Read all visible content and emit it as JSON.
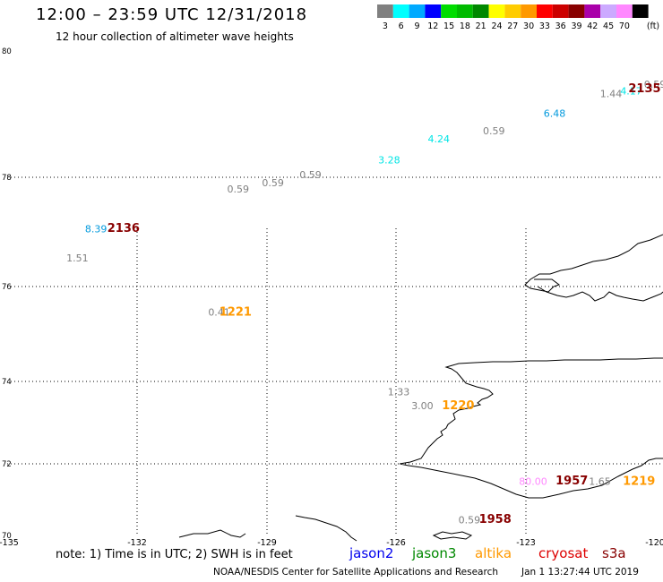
{
  "header": {
    "title": "12:00 – 23:59 UTC 12/31/2018",
    "subtitle": "12 hour collection of altimeter wave heights"
  },
  "legend": {
    "unit": "(ft)",
    "swatches": [
      {
        "color": "#808080",
        "label": "3"
      },
      {
        "color": "#00ffff",
        "label": "6"
      },
      {
        "color": "#00aaff",
        "label": "9"
      },
      {
        "color": "#0000ff",
        "label": "12"
      },
      {
        "color": "#00dd00",
        "label": "15"
      },
      {
        "color": "#00bb00",
        "label": "18"
      },
      {
        "color": "#008800",
        "label": "21"
      },
      {
        "color": "#ffff00",
        "label": "24"
      },
      {
        "color": "#ffcc00",
        "label": "27"
      },
      {
        "color": "#ff9900",
        "label": "30"
      },
      {
        "color": "#ff0000",
        "label": "33"
      },
      {
        "color": "#cc0000",
        "label": "36"
      },
      {
        "color": "#880000",
        "label": "39"
      },
      {
        "color": "#aa00aa",
        "label": "42"
      },
      {
        "color": "#ccaaff",
        "label": "45"
      },
      {
        "color": "#ff88ff",
        "label": "70"
      },
      {
        "color": "#000000",
        "label": ""
      }
    ]
  },
  "axes": {
    "lat_labels": [
      "80",
      "78",
      "76",
      "74",
      "72",
      "70"
    ],
    "lon_labels": [
      "-135",
      "-132",
      "-129",
      "-126",
      "-123",
      "-120"
    ]
  },
  "wave_heights": [
    {
      "text": "0.59",
      "color": "#808080",
      "lon": -120.0,
      "lat": 79.42
    },
    {
      "text": "1.44",
      "color": "#808080",
      "lon": -121.02,
      "lat": 79.27
    },
    {
      "text": "4.17",
      "color": "#00e5e5",
      "lon": -120.55,
      "lat": 79.31
    },
    {
      "text": "6.48",
      "color": "#0099dd",
      "lon": -122.33,
      "lat": 78.96
    },
    {
      "text": "0.59",
      "color": "#808080",
      "lon": -123.74,
      "lat": 78.68
    },
    {
      "text": "4.24",
      "color": "#00e5e5",
      "lon": -125.02,
      "lat": 78.55
    },
    {
      "text": "3.28",
      "color": "#00e5e5",
      "lon": -126.17,
      "lat": 78.22
    },
    {
      "text": "0.59",
      "color": "#808080",
      "lon": -128.0,
      "lat": 77.98
    },
    {
      "text": "0.59",
      "color": "#808080",
      "lon": -128.87,
      "lat": 77.84
    },
    {
      "text": "0.59",
      "color": "#808080",
      "lon": -129.68,
      "lat": 77.72
    },
    {
      "text": "8.39",
      "color": "#0099dd",
      "lon": -132.98,
      "lat": 76.99
    },
    {
      "text": "1.51",
      "color": "#808080",
      "lon": -133.41,
      "lat": 76.46
    },
    {
      "text": "0.41",
      "color": "#808080",
      "lon": -130.12,
      "lat": 75.39
    },
    {
      "text": "1.33",
      "color": "#808080",
      "lon": -125.95,
      "lat": 73.66
    },
    {
      "text": "3.00",
      "color": "#808080",
      "lon": -125.4,
      "lat": 73.33
    },
    {
      "text": "80.00",
      "color": "#ff88ff",
      "lon": -122.83,
      "lat": 71.41
    },
    {
      "text": "1.65",
      "color": "#808080",
      "lon": -121.28,
      "lat": 71.41
    },
    {
      "text": "0.59",
      "color": "#808080",
      "lon": -124.31,
      "lat": 70.34
    }
  ],
  "times": [
    {
      "text": "2135",
      "color": "#880000",
      "lon": -120.24,
      "lat": 79.35
    },
    {
      "text": "2136",
      "color": "#880000",
      "lon": -132.34,
      "lat": 77.0
    },
    {
      "text": "1221",
      "color": "#ff9900",
      "lon": -129.74,
      "lat": 75.39
    },
    {
      "text": "1220",
      "color": "#ff9900",
      "lon": -124.57,
      "lat": 73.33
    },
    {
      "text": "1957",
      "color": "#880000",
      "lon": -121.93,
      "lat": 71.42
    },
    {
      "text": "1219",
      "color": "#ff9900",
      "lon": -120.37,
      "lat": 71.41
    },
    {
      "text": "1958",
      "color": "#880000",
      "lon": -123.71,
      "lat": 70.35
    }
  ],
  "footer": {
    "note": "note:  1) Time is in UTC;  2) SWH is in feet",
    "satellites": [
      {
        "name": "jason2",
        "color": "#0000ee"
      },
      {
        "name": "jason3",
        "color": "#008800"
      },
      {
        "name": "altika",
        "color": "#ff9900"
      },
      {
        "name": "cryosat",
        "color": "#dd0000"
      },
      {
        "name": "s3a",
        "color": "#880000"
      }
    ],
    "credit": "NOAA/NESDIS Center for Satellite Applications and Research",
    "timestamp": "Jan  1 13:27:44 UTC 2019"
  }
}
